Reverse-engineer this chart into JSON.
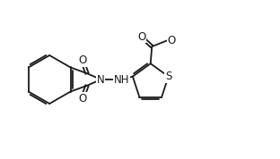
{
  "bg_color": "#ffffff",
  "line_color": "#1a1a1a",
  "lw": 1.3,
  "fs": 8.5,
  "figsize": [
    3.12,
    1.78
  ],
  "dpi": 100,
  "xlim": [
    0,
    10.0
  ],
  "ylim": [
    0,
    5.7
  ]
}
